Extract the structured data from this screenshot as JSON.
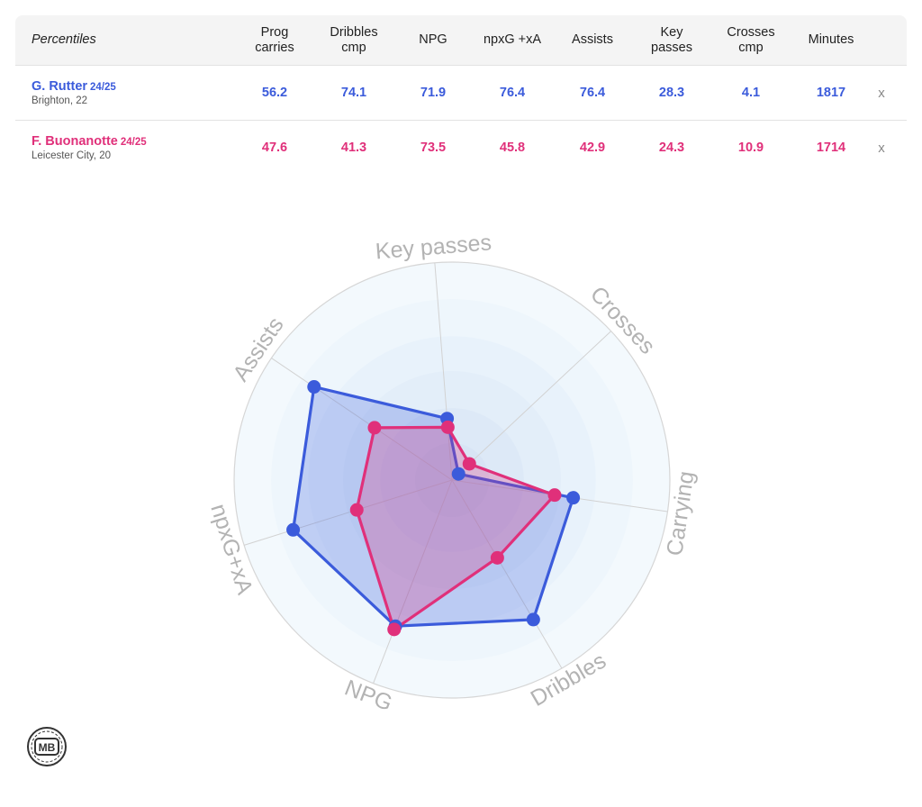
{
  "table": {
    "header_label": "Percentiles",
    "columns": [
      "Prog\ncarries",
      "Dribbles\ncmp",
      "NPG",
      "npxG +xA",
      "Assists",
      "Key\npasses",
      "Crosses\ncmp",
      "Minutes"
    ],
    "remove_label": "x",
    "players": [
      {
        "name": "G. Rutter",
        "season": "24/25",
        "subtitle": "Brighton, 22",
        "color": "#3b5bdb",
        "values": [
          "56.2",
          "74.1",
          "71.9",
          "76.4",
          "76.4",
          "28.3",
          "4.1",
          "1817"
        ]
      },
      {
        "name": "F. Buonanotte",
        "season": "24/25",
        "subtitle": "Leicester City, 20",
        "color": "#e0307a",
        "values": [
          "47.6",
          "41.3",
          "73.5",
          "45.8",
          "42.9",
          "24.3",
          "10.9",
          "1714"
        ]
      }
    ]
  },
  "chart_data": {
    "type": "radar",
    "axes": [
      "Key passes",
      "Crosses",
      "Carrying",
      "Dribbles",
      "NPG",
      "npxG+xA",
      "Assists"
    ],
    "range": [
      0,
      100
    ],
    "series": [
      {
        "name": "G. Rutter",
        "color": "#3b5bdb",
        "values": [
          28.3,
          4.1,
          56.2,
          74.1,
          71.9,
          76.4,
          76.4
        ]
      },
      {
        "name": "F. Buonanotte",
        "color": "#e0307a",
        "values": [
          24.3,
          10.9,
          47.6,
          41.3,
          73.5,
          45.8,
          42.9
        ]
      }
    ]
  },
  "logo_text": "MB"
}
